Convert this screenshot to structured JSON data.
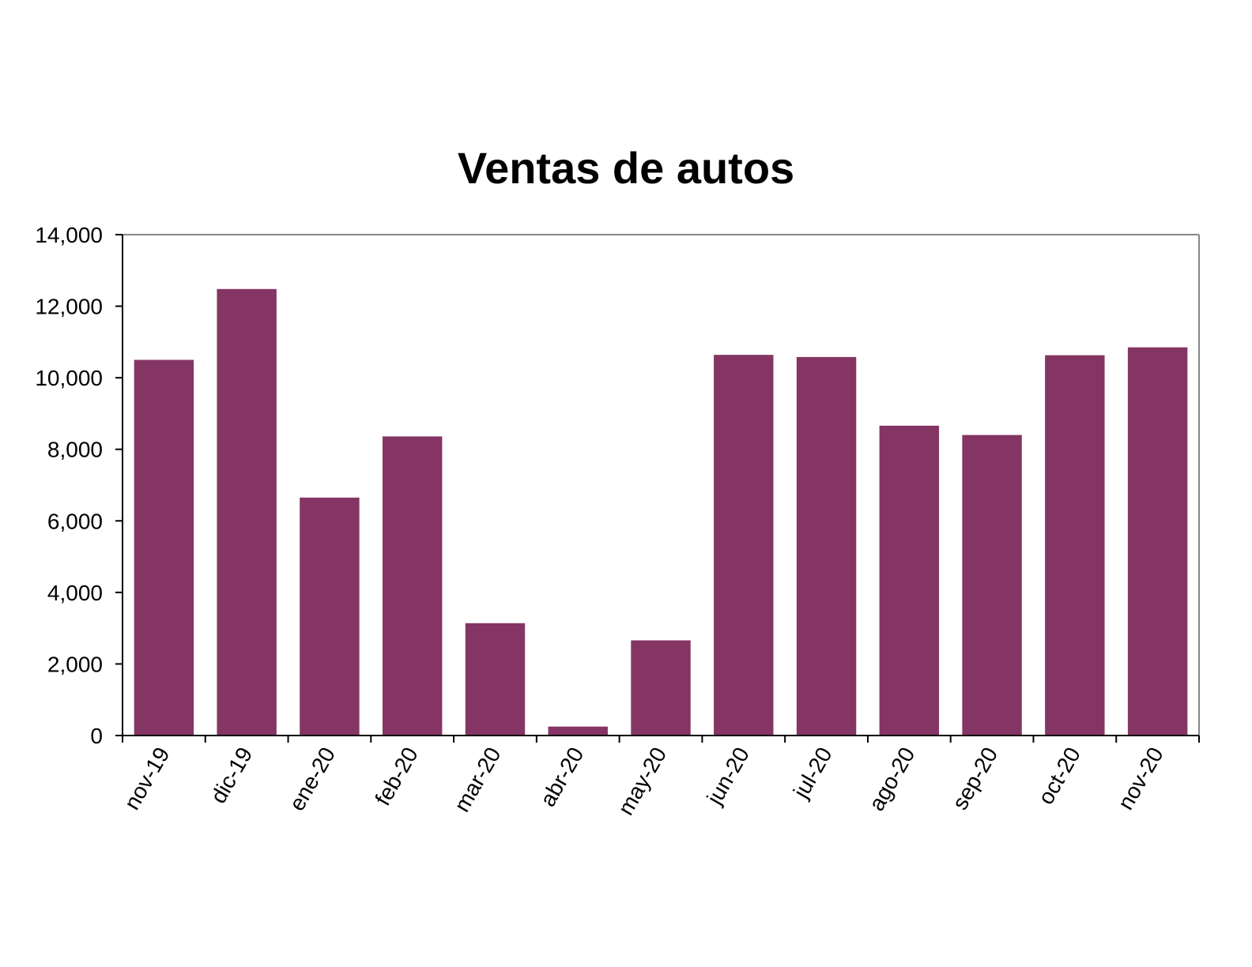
{
  "chart_data": {
    "type": "bar",
    "title": "Ventas de autos",
    "xlabel": "",
    "ylabel": "",
    "categories": [
      "nov-19",
      "dic-19",
      "ene-20",
      "feb-20",
      "mar-20",
      "abr-20",
      "may-20",
      "jun-20",
      "jul-20",
      "ago-20",
      "sep-20",
      "oct-20",
      "nov-20"
    ],
    "values": [
      10500,
      12480,
      6650,
      8360,
      3140,
      250,
      2660,
      10640,
      10580,
      8660,
      8400,
      10630,
      10850
    ],
    "ylim": [
      0,
      14000
    ],
    "yticks": [
      "0",
      "2,000",
      "4,000",
      "6,000",
      "8,000",
      "10,000",
      "12,000",
      "14,000"
    ],
    "bar_color": "#853564",
    "grid": false,
    "legend": "none"
  }
}
